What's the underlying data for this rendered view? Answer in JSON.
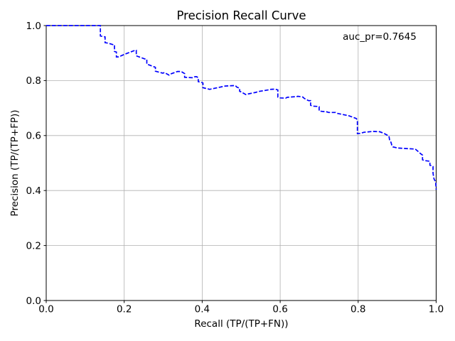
{
  "figure": {
    "title": "Precision Recall Curve",
    "annotation": "auc_pr=0.7645",
    "xlabel": "Recall (TP/(TP+FN))",
    "ylabel": "Precision (TP/(TP+FP))"
  },
  "colors": {
    "curve": "#0000ff",
    "grid": "#b0b0b0",
    "frame": "#000000",
    "background": "#ffffff",
    "text": "#000000"
  },
  "chart_data": {
    "type": "line",
    "title": "Precision Recall Curve",
    "xlabel": "Recall (TP/(TP+FN))",
    "ylabel": "Precision (TP/(TP+FP))",
    "xlim": [
      0.0,
      1.0
    ],
    "ylim": [
      0.0,
      1.0
    ],
    "x_ticks": [
      0.0,
      0.2,
      0.4,
      0.6,
      0.8,
      1.0
    ],
    "y_ticks": [
      0.0,
      0.2,
      0.4,
      0.6,
      0.8,
      1.0
    ],
    "grid": true,
    "legend": false,
    "line_style": "dashed",
    "auc_pr": 0.7645,
    "annotations": [
      {
        "text": "auc_pr=0.7645",
        "x": 0.855,
        "y": 0.948
      }
    ],
    "series": [
      {
        "name": "precision_recall_curve",
        "points": [
          [
            0.0,
            1.0
          ],
          [
            0.139,
            1.0
          ],
          [
            0.139,
            0.962
          ],
          [
            0.151,
            0.959
          ],
          [
            0.151,
            0.938
          ],
          [
            0.159,
            0.936
          ],
          [
            0.173,
            0.93
          ],
          [
            0.175,
            0.93
          ],
          [
            0.175,
            0.906
          ],
          [
            0.18,
            0.904
          ],
          [
            0.18,
            0.886
          ],
          [
            0.186,
            0.886
          ],
          [
            0.2,
            0.895
          ],
          [
            0.228,
            0.91
          ],
          [
            0.231,
            0.91
          ],
          [
            0.231,
            0.89
          ],
          [
            0.252,
            0.879
          ],
          [
            0.258,
            0.877
          ],
          [
            0.258,
            0.86
          ],
          [
            0.277,
            0.85
          ],
          [
            0.28,
            0.848
          ],
          [
            0.28,
            0.834
          ],
          [
            0.299,
            0.827
          ],
          [
            0.303,
            0.829
          ],
          [
            0.315,
            0.82
          ],
          [
            0.319,
            0.824
          ],
          [
            0.337,
            0.833
          ],
          [
            0.346,
            0.833
          ],
          [
            0.352,
            0.828
          ],
          [
            0.355,
            0.825
          ],
          [
            0.355,
            0.812
          ],
          [
            0.377,
            0.81
          ],
          [
            0.381,
            0.814
          ],
          [
            0.386,
            0.814
          ],
          [
            0.39,
            0.81
          ],
          [
            0.39,
            0.796
          ],
          [
            0.399,
            0.793
          ],
          [
            0.402,
            0.791
          ],
          [
            0.402,
            0.774
          ],
          [
            0.417,
            0.769
          ],
          [
            0.419,
            0.768
          ],
          [
            0.459,
            0.78
          ],
          [
            0.485,
            0.782
          ],
          [
            0.489,
            0.776
          ],
          [
            0.496,
            0.772
          ],
          [
            0.496,
            0.761
          ],
          [
            0.498,
            0.76
          ],
          [
            0.512,
            0.749
          ],
          [
            0.52,
            0.752
          ],
          [
            0.538,
            0.757
          ],
          [
            0.543,
            0.76
          ],
          [
            0.569,
            0.766
          ],
          [
            0.574,
            0.768
          ],
          [
            0.587,
            0.769
          ],
          [
            0.594,
            0.766
          ],
          [
            0.594,
            0.74
          ],
          [
            0.6,
            0.737
          ],
          [
            0.614,
            0.736
          ],
          [
            0.618,
            0.739
          ],
          [
            0.644,
            0.742
          ],
          [
            0.645,
            0.743
          ],
          [
            0.658,
            0.74
          ],
          [
            0.662,
            0.735
          ],
          [
            0.673,
            0.727
          ],
          [
            0.678,
            0.727
          ],
          [
            0.678,
            0.71
          ],
          [
            0.684,
            0.707
          ],
          [
            0.695,
            0.706
          ],
          [
            0.7,
            0.705
          ],
          [
            0.7,
            0.69
          ],
          [
            0.706,
            0.688
          ],
          [
            0.72,
            0.686
          ],
          [
            0.724,
            0.684
          ],
          [
            0.742,
            0.684
          ],
          [
            0.746,
            0.681
          ],
          [
            0.776,
            0.672
          ],
          [
            0.795,
            0.662
          ],
          [
            0.798,
            0.656
          ],
          [
            0.798,
            0.607
          ],
          [
            0.805,
            0.608
          ],
          [
            0.815,
            0.612
          ],
          [
            0.838,
            0.615
          ],
          [
            0.855,
            0.614
          ],
          [
            0.866,
            0.608
          ],
          [
            0.875,
            0.601
          ],
          [
            0.879,
            0.598
          ],
          [
            0.881,
            0.581
          ],
          [
            0.884,
            0.576
          ],
          [
            0.886,
            0.566
          ],
          [
            0.889,
            0.559
          ],
          [
            0.897,
            0.556
          ],
          [
            0.899,
            0.555
          ],
          [
            0.92,
            0.553
          ],
          [
            0.946,
            0.551
          ],
          [
            0.948,
            0.549
          ],
          [
            0.961,
            0.533
          ],
          [
            0.965,
            0.529
          ],
          [
            0.965,
            0.512
          ],
          [
            0.97,
            0.509
          ],
          [
            0.981,
            0.507
          ],
          [
            0.984,
            0.505
          ],
          [
            0.984,
            0.492
          ],
          [
            0.99,
            0.49
          ],
          [
            0.992,
            0.487
          ],
          [
            0.992,
            0.463
          ],
          [
            0.994,
            0.446
          ],
          [
            0.995,
            0.44
          ],
          [
            0.998,
            0.434
          ],
          [
            0.999,
            0.427
          ],
          [
            0.999,
            0.42
          ],
          [
            1.0,
            0.414
          ],
          [
            1.0,
            0.403
          ]
        ]
      }
    ]
  }
}
